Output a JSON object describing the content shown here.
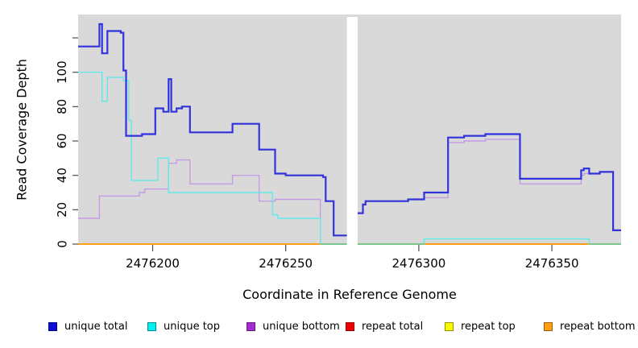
{
  "figure": {
    "background": "#ffffff",
    "text_color": "#000000",
    "tick_color": "#4d4d4d"
  },
  "chart_data": {
    "type": "line",
    "subtype": "step-coverage",
    "title": "",
    "xlabel": "Coordinate in Reference Genome",
    "ylabel": "Read Coverage Depth",
    "xlim": [
      2476172,
      2476376
    ],
    "ylim": [
      0,
      133.6
    ],
    "grid": false,
    "plot_bg": "#d9d9d9",
    "xticks": [
      {
        "value": 2476200,
        "label": "2476200"
      },
      {
        "value": 2476250,
        "label": "2476250"
      },
      {
        "value": 2476300,
        "label": "2476300"
      },
      {
        "value": 2476350,
        "label": "2476350"
      }
    ],
    "yticks": [
      {
        "value": 0,
        "label": "0"
      },
      {
        "value": 20,
        "label": "20"
      },
      {
        "value": 40,
        "label": "40"
      },
      {
        "value": 60,
        "label": "60"
      },
      {
        "value": 80,
        "label": "80"
      },
      {
        "value": 100,
        "label": "100"
      },
      {
        "value": 120,
        "label": ""
      }
    ],
    "no_data_gap": [
      2476273,
      2476277
    ],
    "series": [
      {
        "name": "repeat total",
        "color": "#e81010",
        "width": 1.5,
        "segments": [
          [
            [
              2476172,
              0
            ],
            [
              2476273,
              0
            ]
          ],
          [
            [
              2476277,
              0
            ],
            [
              2476376,
              0
            ]
          ]
        ]
      },
      {
        "name": "repeat top",
        "color": "#f2f20a",
        "width": 1.5,
        "segments": [
          [
            [
              2476172,
              0
            ],
            [
              2476273,
              0
            ]
          ],
          [
            [
              2476277,
              0
            ],
            [
              2476376,
              0
            ]
          ]
        ]
      },
      {
        "name": "repeat bottom",
        "color": "#ff9e19",
        "width": 2,
        "segments": [
          [
            [
              2476172,
              0
            ],
            [
              2476273,
              0
            ]
          ],
          [
            [
              2476277,
              0
            ],
            [
              2476376,
              0
            ]
          ]
        ]
      },
      {
        "name": "unique bottom",
        "color": "#c59ce4",
        "width": 1.4,
        "segments": [
          [
            [
              2476172,
              15
            ],
            [
              2476180,
              28
            ],
            [
              2476195,
              30
            ],
            [
              2476197,
              32
            ],
            [
              2476206,
              47
            ],
            [
              2476209,
              49
            ],
            [
              2476214,
              35
            ],
            [
              2476230,
              40
            ],
            [
              2476240,
              25
            ],
            [
              2476246,
              26
            ],
            [
              2476263,
              0
            ],
            [
              2476273,
              0
            ]
          ],
          [
            [
              2476277,
              18
            ],
            [
              2476279,
              23
            ],
            [
              2476280,
              25
            ],
            [
              2476296,
              26
            ],
            [
              2476302,
              27
            ],
            [
              2476311,
              59
            ],
            [
              2476317,
              60
            ],
            [
              2476325,
              61
            ],
            [
              2476338,
              35
            ],
            [
              2476361,
              40
            ],
            [
              2476362,
              41
            ],
            [
              2476368,
              42
            ],
            [
              2476373,
              8
            ],
            [
              2476376,
              8
            ]
          ]
        ]
      },
      {
        "name": "unique top",
        "color": "#63e9e9",
        "width": 1.4,
        "segments": [
          [
            [
              2476172,
              100
            ],
            [
              2476181,
              83
            ],
            [
              2476183,
              97
            ],
            [
              2476189,
              95
            ],
            [
              2476191,
              72
            ],
            [
              2476192,
              37
            ],
            [
              2476202,
              50
            ],
            [
              2476206,
              30
            ],
            [
              2476245,
              17
            ],
            [
              2476247,
              15
            ],
            [
              2476263,
              0
            ],
            [
              2476273,
              0
            ]
          ],
          [
            [
              2476277,
              0
            ],
            [
              2476302,
              3
            ],
            [
              2476364,
              0
            ],
            [
              2476376,
              0
            ]
          ]
        ]
      },
      {
        "name": "unique total",
        "color": "#3232dc",
        "width": 2.2,
        "segments": [
          [
            [
              2476172,
              115
            ],
            [
              2476180,
              128
            ],
            [
              2476181,
              111
            ],
            [
              2476183,
              124
            ],
            [
              2476188,
              123
            ],
            [
              2476189,
              101
            ],
            [
              2476190,
              63
            ],
            [
              2476196,
              64
            ],
            [
              2476201,
              79
            ],
            [
              2476204,
              77
            ],
            [
              2476206,
              96
            ],
            [
              2476207,
              77
            ],
            [
              2476209,
              79
            ],
            [
              2476211,
              80
            ],
            [
              2476214,
              65
            ],
            [
              2476230,
              70
            ],
            [
              2476240,
              55
            ],
            [
              2476246,
              41
            ],
            [
              2476250,
              40
            ],
            [
              2476264,
              39
            ],
            [
              2476265,
              25
            ],
            [
              2476268,
              5
            ],
            [
              2476273,
              5
            ]
          ],
          [
            [
              2476277,
              18
            ],
            [
              2476279,
              23
            ],
            [
              2476280,
              25
            ],
            [
              2476296,
              26
            ],
            [
              2476302,
              30
            ],
            [
              2476311,
              62
            ],
            [
              2476317,
              63
            ],
            [
              2476325,
              64
            ],
            [
              2476338,
              38
            ],
            [
              2476361,
              43
            ],
            [
              2476362,
              44
            ],
            [
              2476364,
              41
            ],
            [
              2476368,
              42
            ],
            [
              2476373,
              8
            ],
            [
              2476376,
              8
            ]
          ]
        ]
      }
    ],
    "cyan_orange_overlap": {
      "color": "#74c58c",
      "width": 1.8,
      "segments": [
        [
          2476263,
          2476273
        ],
        [
          2476277,
          2476302
        ],
        [
          2476364,
          2476376
        ]
      ]
    },
    "legend_position": "bottom"
  },
  "legend": {
    "items": [
      {
        "label": "unique total",
        "color": "#0d0dd6"
      },
      {
        "label": "unique top",
        "color": "#00efef"
      },
      {
        "label": "unique bottom",
        "color": "#a32ccf"
      },
      {
        "label": "repeat total",
        "color": "#ee0000"
      },
      {
        "label": "repeat top",
        "color": "#f8f800"
      },
      {
        "label": "repeat bottom",
        "color": "#ffa012"
      }
    ]
  }
}
